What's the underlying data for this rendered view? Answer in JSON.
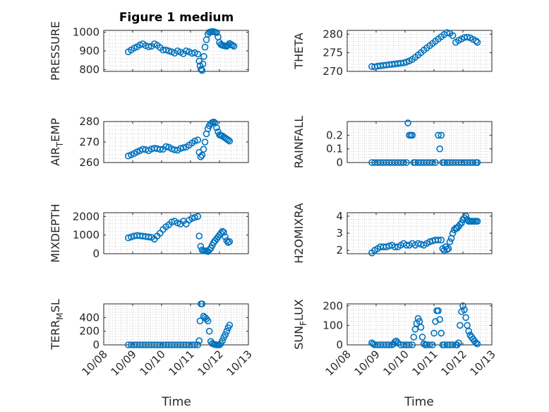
{
  "figure": {
    "title": "Figure 1 medium",
    "xlabel": "Time",
    "xtick_labels": [
      "10/08",
      "10/09",
      "10/10",
      "10/11",
      "10/12",
      "10/13"
    ],
    "xlim": [
      0,
      5
    ],
    "marker": "open-circle",
    "marker_color": "#0072bd"
  },
  "chart_data": [
    {
      "type": "scatter",
      "ylabel": "PRESSURE",
      "ylim": [
        790,
        1010
      ],
      "yticks": [
        800,
        900,
        1000
      ],
      "x": [
        0.85,
        0.95,
        1.05,
        1.15,
        1.25,
        1.35,
        1.45,
        1.55,
        1.65,
        1.75,
        1.85,
        1.95,
        2.05,
        2.15,
        2.25,
        2.35,
        2.45,
        2.55,
        2.65,
        2.75,
        2.85,
        2.95,
        3.05,
        3.15,
        3.25,
        3.3,
        3.33,
        3.36,
        3.4,
        3.43,
        3.46,
        3.5,
        3.55,
        3.6,
        3.65,
        3.7,
        3.75,
        3.8,
        3.85,
        3.9,
        3.95,
        4.0,
        4.05,
        4.1,
        4.15,
        4.2,
        4.25,
        4.3,
        4.35,
        4.4,
        4.45,
        4.5
      ],
      "y": [
        895,
        905,
        915,
        922,
        932,
        938,
        928,
        922,
        925,
        938,
        930,
        918,
        905,
        905,
        900,
        895,
        888,
        900,
        893,
        885,
        900,
        895,
        887,
        890,
        883,
        845,
        820,
        800,
        795,
        830,
        870,
        920,
        960,
        990,
        1000,
        1002,
        1003,
        1003,
        1001,
        998,
        975,
        945,
        935,
        930,
        928,
        926,
        925,
        930,
        940,
        935,
        930,
        925
      ]
    },
    {
      "type": "scatter",
      "ylabel": "THETA",
      "ylim": [
        270,
        281
      ],
      "yticks": [
        270,
        275,
        280
      ],
      "x": [
        0.85,
        0.95,
        1.05,
        1.15,
        1.25,
        1.35,
        1.45,
        1.55,
        1.65,
        1.75,
        1.85,
        1.95,
        2.05,
        2.15,
        2.25,
        2.35,
        2.45,
        2.55,
        2.65,
        2.75,
        2.85,
        2.95,
        3.05,
        3.15,
        3.25,
        3.35,
        3.45,
        3.55,
        3.65,
        3.75,
        3.85,
        3.95,
        4.05,
        4.15,
        4.25,
        4.35,
        4.45,
        4.5
      ],
      "y": [
        271.3,
        271.2,
        271.4,
        271.5,
        271.6,
        271.7,
        271.8,
        271.9,
        272.0,
        272.1,
        272.2,
        272.3,
        272.5,
        272.8,
        273.2,
        273.8,
        274.4,
        275.0,
        275.7,
        276.3,
        276.9,
        277.5,
        278.1,
        278.7,
        279.3,
        279.9,
        280.4,
        280.2,
        279.6,
        277.8,
        278.3,
        278.7,
        279.1,
        279.2,
        279.0,
        278.6,
        278.2,
        277.8
      ]
    },
    {
      "type": "scatter",
      "ylabel": "AIR_TEMP",
      "ylim": [
        260,
        280
      ],
      "yticks": [
        260,
        270,
        280
      ],
      "x": [
        0.85,
        0.95,
        1.05,
        1.15,
        1.25,
        1.35,
        1.45,
        1.55,
        1.65,
        1.75,
        1.85,
        1.95,
        2.05,
        2.15,
        2.25,
        2.35,
        2.45,
        2.55,
        2.65,
        2.75,
        2.85,
        2.95,
        3.05,
        3.15,
        3.25,
        3.3,
        3.35,
        3.4,
        3.45,
        3.5,
        3.55,
        3.6,
        3.65,
        3.7,
        3.75,
        3.8,
        3.85,
        3.9,
        3.95,
        4.0,
        4.05,
        4.1,
        4.15,
        4.2,
        4.25,
        4.3,
        4.35
      ],
      "y": [
        263.2,
        263.8,
        264.4,
        265.2,
        265.8,
        266.5,
        266.3,
        265.8,
        266.6,
        267.0,
        266.8,
        266.4,
        266.5,
        267.8,
        267.5,
        266.7,
        266.2,
        266.0,
        266.9,
        267.2,
        267.6,
        268.5,
        269.5,
        270.5,
        271.0,
        265.0,
        262.8,
        263.6,
        266.5,
        270.0,
        274.0,
        276.5,
        278.0,
        279.0,
        279.5,
        279.8,
        279.3,
        277.0,
        275.0,
        273.5,
        273.2,
        273.0,
        272.5,
        272.0,
        271.5,
        271.0,
        270.5
      ]
    },
    {
      "type": "scatter",
      "ylabel": "RAINFALL",
      "ylim": [
        0,
        0.3
      ],
      "yticks": [
        0,
        0.1,
        0.2
      ],
      "x": [
        0.85,
        0.95,
        1.05,
        1.15,
        1.25,
        1.35,
        1.45,
        1.55,
        1.65,
        1.75,
        1.85,
        1.95,
        2.05,
        2.1,
        2.15,
        2.2,
        2.25,
        2.3,
        2.35,
        2.45,
        2.55,
        2.65,
        2.75,
        2.85,
        2.95,
        3.05,
        3.15,
        3.2,
        3.25,
        3.3,
        3.35,
        3.45,
        3.55,
        3.65,
        3.75,
        3.85,
        3.95,
        4.05,
        4.15,
        4.25,
        4.35,
        4.45,
        4.5
      ],
      "y": [
        0,
        0,
        0,
        0,
        0,
        0,
        0,
        0,
        0,
        0,
        0,
        0,
        0,
        0.29,
        0.2,
        0.2,
        0.2,
        0,
        0,
        0,
        0,
        0,
        0,
        0,
        0,
        0,
        0.2,
        0.1,
        0.2,
        0,
        0,
        0,
        0,
        0,
        0,
        0,
        0,
        0,
        0,
        0,
        0,
        0,
        0
      ]
    },
    {
      "type": "scatter",
      "ylabel": "MIXDEPTH",
      "ylim": [
        0,
        2200
      ],
      "yticks": [
        0,
        1000,
        2000
      ],
      "x": [
        0.85,
        0.95,
        1.05,
        1.15,
        1.25,
        1.35,
        1.45,
        1.55,
        1.65,
        1.75,
        1.85,
        1.95,
        2.05,
        2.15,
        2.25,
        2.35,
        2.45,
        2.55,
        2.65,
        2.75,
        2.85,
        2.95,
        3.05,
        3.15,
        3.25,
        3.3,
        3.35,
        3.4,
        3.45,
        3.5,
        3.55,
        3.6,
        3.65,
        3.7,
        3.75,
        3.8,
        3.85,
        3.9,
        3.95,
        4.0,
        4.05,
        4.1,
        4.15,
        4.2,
        4.25,
        4.3,
        4.35
      ],
      "y": [
        850,
        900,
        950,
        980,
        960,
        940,
        920,
        900,
        880,
        780,
        950,
        1100,
        1300,
        1450,
        1550,
        1700,
        1750,
        1650,
        1600,
        1750,
        1600,
        1800,
        1900,
        1950,
        2000,
        950,
        400,
        200,
        150,
        150,
        150,
        120,
        200,
        300,
        450,
        600,
        700,
        800,
        900,
        1000,
        1100,
        1200,
        1150,
        900,
        700,
        600,
        650
      ]
    },
    {
      "type": "scatter",
      "ylabel": "H2OMIXRA",
      "ylim": [
        1.8,
        4.2
      ],
      "yticks": [
        2,
        3,
        4
      ],
      "x": [
        0.85,
        0.95,
        1.05,
        1.15,
        1.25,
        1.35,
        1.45,
        1.55,
        1.65,
        1.75,
        1.85,
        1.95,
        2.05,
        2.15,
        2.25,
        2.35,
        2.45,
        2.55,
        2.65,
        2.75,
        2.85,
        2.95,
        3.05,
        3.15,
        3.25,
        3.3,
        3.35,
        3.4,
        3.45,
        3.5,
        3.55,
        3.6,
        3.65,
        3.7,
        3.75,
        3.8,
        3.85,
        3.9,
        3.95,
        4.0,
        4.05,
        4.1,
        4.15,
        4.2,
        4.25,
        4.3,
        4.35,
        4.4,
        4.45,
        4.5
      ],
      "y": [
        1.85,
        2.0,
        2.1,
        2.2,
        2.2,
        2.2,
        2.25,
        2.3,
        2.2,
        2.2,
        2.3,
        2.4,
        2.3,
        2.3,
        2.4,
        2.3,
        2.4,
        2.35,
        2.3,
        2.4,
        2.5,
        2.55,
        2.6,
        2.6,
        2.6,
        2.1,
        2.0,
        2.2,
        2.05,
        2.1,
        2.5,
        2.7,
        3.0,
        3.2,
        3.3,
        3.3,
        3.4,
        3.5,
        3.6,
        3.8,
        3.9,
        4.0,
        3.8,
        3.7,
        3.7,
        3.7,
        3.7,
        3.7,
        3.7,
        3.7
      ]
    },
    {
      "type": "scatter",
      "ylabel": "TERR_MSL",
      "ylim": [
        0,
        600
      ],
      "yticks": [
        0,
        200,
        400
      ],
      "x": [
        0.85,
        0.95,
        1.05,
        1.15,
        1.25,
        1.35,
        1.45,
        1.55,
        1.65,
        1.75,
        1.85,
        1.95,
        2.05,
        2.15,
        2.25,
        2.35,
        2.45,
        2.55,
        2.65,
        2.75,
        2.85,
        2.95,
        3.05,
        3.15,
        3.25,
        3.3,
        3.33,
        3.36,
        3.4,
        3.45,
        3.5,
        3.55,
        3.6,
        3.65,
        3.7,
        3.75,
        3.8,
        3.85,
        3.9,
        3.95,
        4.0,
        4.05,
        4.1,
        4.15,
        4.2,
        4.25,
        4.3,
        4.35
      ],
      "y": [
        0,
        0,
        0,
        0,
        0,
        0,
        0,
        0,
        0,
        0,
        0,
        0,
        0,
        0,
        0,
        0,
        0,
        0,
        0,
        0,
        0,
        0,
        0,
        0,
        0,
        60,
        350,
        600,
        600,
        420,
        400,
        380,
        350,
        200,
        50,
        20,
        10,
        5,
        0,
        0,
        0,
        20,
        60,
        110,
        150,
        200,
        250,
        290
      ]
    },
    {
      "type": "scatter",
      "ylabel": "SUN_FLUX",
      "ylim": [
        0,
        210
      ],
      "yticks": [
        0,
        100,
        200
      ],
      "x": [
        0.85,
        0.9,
        0.95,
        1.05,
        1.15,
        1.25,
        1.35,
        1.45,
        1.55,
        1.6,
        1.65,
        1.7,
        1.75,
        1.85,
        1.95,
        2.05,
        2.15,
        2.25,
        2.3,
        2.35,
        2.4,
        2.45,
        2.5,
        2.55,
        2.6,
        2.65,
        2.7,
        2.75,
        2.85,
        2.95,
        3.0,
        3.05,
        3.1,
        3.15,
        3.2,
        3.25,
        3.3,
        3.35,
        3.45,
        3.55,
        3.65,
        3.75,
        3.8,
        3.85,
        3.9,
        3.95,
        4.0,
        4.05,
        4.1,
        4.15,
        4.2,
        4.25,
        4.3,
        4.35,
        4.4,
        4.45,
        4.5
      ],
      "y": [
        10,
        5,
        0,
        0,
        0,
        0,
        0,
        0,
        0,
        5,
        15,
        20,
        10,
        0,
        0,
        0,
        0,
        0,
        40,
        80,
        110,
        135,
        120,
        90,
        40,
        5,
        0,
        0,
        0,
        0,
        60,
        120,
        175,
        175,
        130,
        60,
        0,
        0,
        0,
        0,
        0,
        0,
        0,
        10,
        100,
        170,
        200,
        180,
        140,
        100,
        70,
        50,
        40,
        30,
        20,
        10,
        5
      ]
    }
  ]
}
